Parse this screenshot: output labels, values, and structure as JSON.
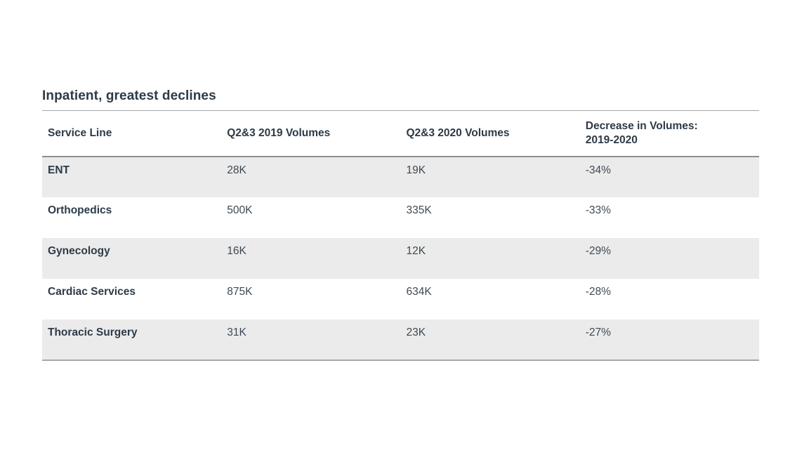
{
  "page": {
    "title": "Inpatient, greatest declines"
  },
  "table": {
    "headers": [
      {
        "label": "Service Line"
      },
      {
        "label": "Q2&3 2019 Volumes"
      },
      {
        "label": "Q2&3 2020 Volumes"
      },
      {
        "label": "Decrease in Volumes:",
        "label2": "2019-2020"
      }
    ],
    "rows": [
      {
        "service": "ENT",
        "v2019": "28K",
        "v2020": "19K",
        "decrease": "-34%"
      },
      {
        "service": "Orthopedics",
        "v2019": "500K",
        "v2020": "335K",
        "decrease": "-33%"
      },
      {
        "service": "Gynecology",
        "v2019": "16K",
        "v2020": "12K",
        "decrease": "-29%"
      },
      {
        "service": "Cardiac Services",
        "v2019": "875K",
        "v2020": "634K",
        "decrease": "-28%"
      },
      {
        "service": "Thoracic Surgery",
        "v2019": "31K",
        "v2020": "23K",
        "decrease": "-27%"
      }
    ]
  },
  "colors": {
    "text_dark": "#2d3b48",
    "text_body": "#3e4953",
    "row_stripe": "#ebebeb",
    "border_outer": "#a6a6a6",
    "border_header": "#8f8f8f",
    "background": "#ffffff"
  },
  "chart_data": {
    "type": "table",
    "title": "Inpatient, greatest declines",
    "columns": [
      "Service Line",
      "Q2&3 2019 Volumes",
      "Q2&3 2020 Volumes",
      "Decrease in Volumes: 2019-2020"
    ],
    "rows": [
      [
        "ENT",
        "28K",
        "19K",
        "-34%"
      ],
      [
        "Orthopedics",
        "500K",
        "335K",
        "-33%"
      ],
      [
        "Gynecology",
        "16K",
        "12K",
        "-29%"
      ],
      [
        "Cardiac Services",
        "875K",
        "634K",
        "-28%"
      ],
      [
        "Thoracic Surgery",
        "31K",
        "23K",
        "-27%"
      ]
    ]
  }
}
